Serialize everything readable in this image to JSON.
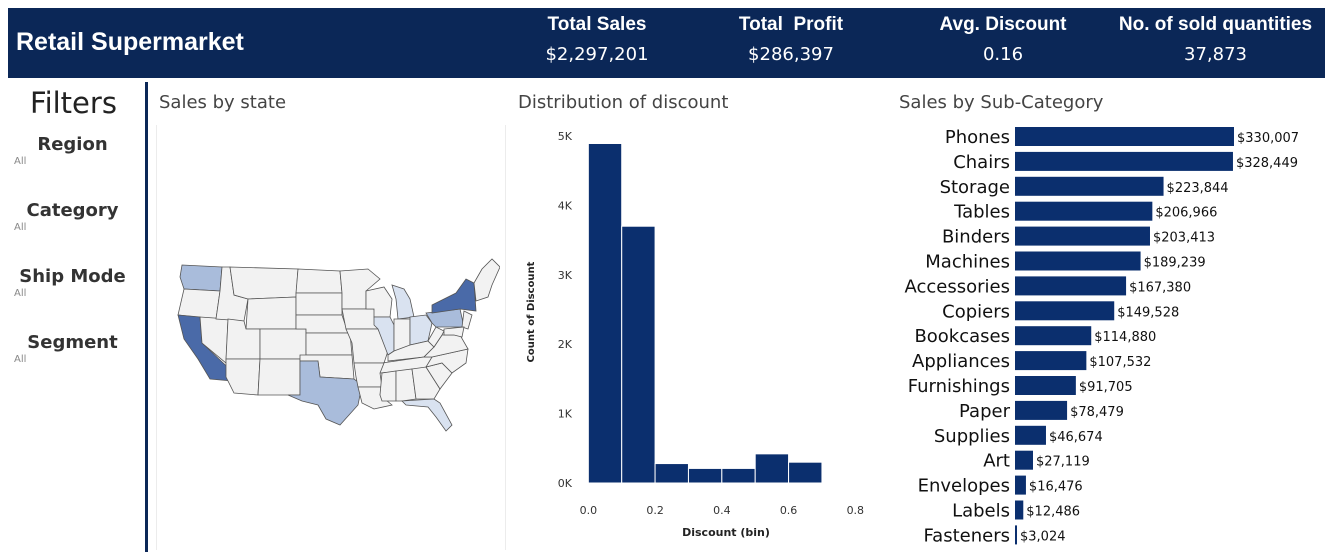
{
  "header": {
    "title": "Retail Supermarket",
    "kpis": [
      {
        "label": "Total Sales",
        "value": "$2,297,201"
      },
      {
        "label": "Total  Profit",
        "value": "$286,397"
      },
      {
        "label": "Avg. Discount",
        "value": "0.16"
      },
      {
        "label": "No. of sold quantities",
        "value": "37,873"
      }
    ]
  },
  "filters": {
    "title": "Filters",
    "items": [
      {
        "label": "Region",
        "value": "All"
      },
      {
        "label": "Category",
        "value": "All"
      },
      {
        "label": "Ship Mode",
        "value": "All"
      },
      {
        "label": "Segment",
        "value": "All"
      }
    ]
  },
  "panels": {
    "map_title": "Sales by state",
    "hist_title": "Distribution of discount",
    "bar_title": "Sales by Sub-Category"
  },
  "colors": {
    "header_bg": "#0b2757",
    "bar": "#0b2f6e",
    "map_high": "#4a6aa8",
    "map_mid": "#a9bcdb",
    "map_low": "#d9e2f0",
    "map_none": "#f2f2f2"
  },
  "map": {
    "highlighted_states": [
      {
        "name": "California",
        "level": "high"
      },
      {
        "name": "New York",
        "level": "high"
      },
      {
        "name": "Texas",
        "level": "mid"
      },
      {
        "name": "Washington",
        "level": "mid"
      },
      {
        "name": "Pennsylvania",
        "level": "mid"
      },
      {
        "name": "Illinois",
        "level": "low"
      },
      {
        "name": "Ohio",
        "level": "low"
      },
      {
        "name": "Michigan",
        "level": "low"
      },
      {
        "name": "Florida",
        "level": "low"
      }
    ]
  },
  "chart_data": [
    {
      "type": "bar",
      "title": "Distribution of discount",
      "xlabel": "Discount (bin)",
      "ylabel": "Count of Discount",
      "bin_starts": [
        0.0,
        0.1,
        0.2,
        0.3,
        0.4,
        0.5,
        0.6,
        0.7
      ],
      "bin_width": 0.1,
      "values": [
        4892,
        3700,
        280,
        210,
        210,
        420,
        300,
        0
      ],
      "xticks": [
        "0.0",
        "0.2",
        "0.4",
        "0.6",
        "0.8"
      ],
      "xtick_values": [
        0.0,
        0.2,
        0.4,
        0.6,
        0.8
      ],
      "yticks": [
        "0K",
        "1K",
        "2K",
        "3K",
        "4K",
        "5K"
      ],
      "ytick_values": [
        0,
        1000,
        2000,
        3000,
        4000,
        5000
      ],
      "xlim": [
        -0.025,
        0.85
      ],
      "ylim": [
        0,
        5000
      ]
    },
    {
      "type": "bar",
      "orientation": "horizontal",
      "title": "Sales by Sub-Category",
      "categories": [
        "Phones",
        "Chairs",
        "Storage",
        "Tables",
        "Binders",
        "Machines",
        "Accessories",
        "Copiers",
        "Bookcases",
        "Appliances",
        "Furnishings",
        "Paper",
        "Supplies",
        "Art",
        "Envelopes",
        "Labels",
        "Fasteners"
      ],
      "values": [
        330007,
        328449,
        223844,
        206966,
        203413,
        189239,
        167380,
        149528,
        114880,
        107532,
        91705,
        78479,
        46674,
        27119,
        16476,
        12486,
        3024
      ],
      "labels": [
        "$330,007",
        "$328,449",
        "$223,844",
        "$206,966",
        "$203,413",
        "$189,239",
        "$167,380",
        "$149,528",
        "$114,880",
        "$107,532",
        "$91,705",
        "$78,479",
        "$46,674",
        "$27,119",
        "$16,476",
        "$12,486",
        "$3,024"
      ],
      "xlim": [
        0,
        330007
      ]
    }
  ]
}
